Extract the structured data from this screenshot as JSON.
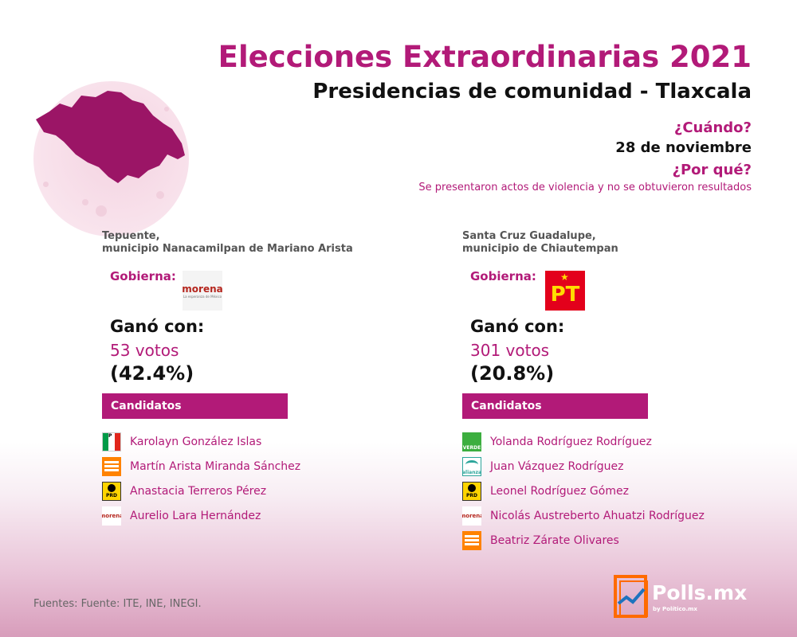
{
  "header": {
    "title": "Elecciones Extraordinarias 2021",
    "subtitle": "Presidencias de comunidad - Tlaxcala",
    "when_label": "¿Cuándo?",
    "when_value": "28 de noviembre",
    "why_label": "¿Por qué?",
    "why_value": "Se presentaron actos de violencia y no se obtuvieron resultados"
  },
  "map": {
    "icon": "tlaxcala-map-icon",
    "color": "#9b1566"
  },
  "left": {
    "location_line1": "Tepuente,",
    "location_line2": "municipio Nanacamilpan de Mariano Arista",
    "governs_label": "Gobierna:",
    "governing_party": {
      "name": "morena",
      "tagline": "La esperanza de México",
      "icon": "morena-logo"
    },
    "won_label": "Ganó con:",
    "votes": "53 votos",
    "percent": "(42.4%)",
    "candidates_header": "Candidatos",
    "candidates": [
      {
        "party": "PRI",
        "icon": "pri-logo",
        "name": "Karolayn González Islas"
      },
      {
        "party": "MC",
        "icon": "movimiento-ciudadano-logo",
        "name": "Martín Arista Miranda Sánchez"
      },
      {
        "party": "PRD",
        "icon": "prd-logo",
        "name": "Anastacia Terreros Pérez"
      },
      {
        "party": "morena",
        "icon": "morena-logo",
        "name": "Aurelio Lara Hernández"
      }
    ]
  },
  "right": {
    "location_line1": "Santa Cruz Guadalupe,",
    "location_line2": "municipio de Chiautempan",
    "governs_label": "Gobierna:",
    "governing_party": {
      "name": "PT",
      "icon": "pt-logo"
    },
    "won_label": "Ganó con:",
    "votes": "301 votos",
    "percent": "(20.8%)",
    "candidates_header": "Candidatos",
    "candidates": [
      {
        "party": "VERDE",
        "icon": "verde-logo",
        "name": "Yolanda Rodríguez Rodríguez"
      },
      {
        "party": "alianza",
        "icon": "nueva-alianza-logo",
        "name": "Juan Vázquez Rodríguez"
      },
      {
        "party": "PRD",
        "icon": "prd-logo",
        "name": "Leonel Rodríguez Gómez"
      },
      {
        "party": "morena",
        "icon": "morena-logo",
        "name": "Nicolás Austreberto Ahuatzi Rodríguez"
      },
      {
        "party": "MC",
        "icon": "movimiento-ciudadano-logo",
        "name": "Beatriz Zárate Olivares"
      }
    ]
  },
  "footer": {
    "sources": "Fuentes: Fuente: ITE, INE, INEGI.",
    "brand": "Polls.mx",
    "brand_sub": "by Político.mx",
    "brand_icon": "polls-chart-icon"
  },
  "colors": {
    "accent": "#b21a78",
    "text": "#111111",
    "muted": "#666666"
  }
}
